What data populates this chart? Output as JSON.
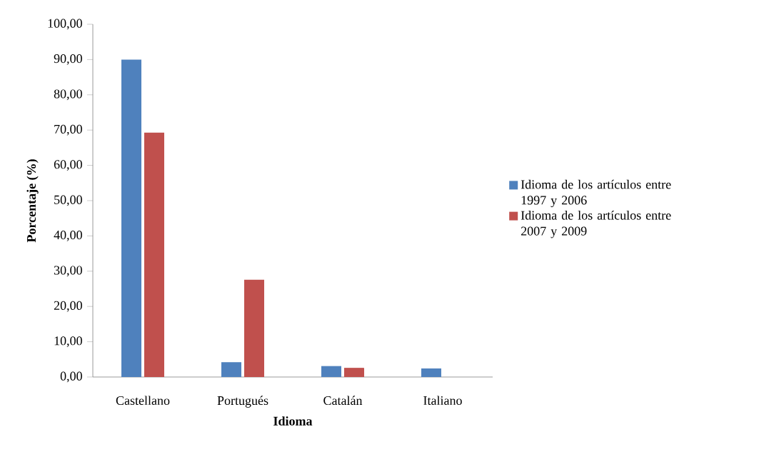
{
  "chart_data": {
    "type": "bar",
    "xlabel": "Idioma",
    "ylabel": "Porcentaje (%)",
    "categories": [
      "Castellano",
      "Portugués",
      "Catalán",
      "Italiano"
    ],
    "series": [
      {
        "name": "Idioma de los artículos entre 1997 y 2006",
        "color": "#4f81bd",
        "values": [
          90.0,
          4.2,
          3.1,
          2.4
        ]
      },
      {
        "name": "Idioma de los artículos entre 2007 y 2009",
        "color": "#c0504d",
        "values": [
          69.3,
          27.6,
          2.6,
          null
        ]
      }
    ],
    "ylim": [
      0,
      100
    ],
    "yticks": [
      {
        "value": 0,
        "label": "0,00"
      },
      {
        "value": 10,
        "label": "10,00"
      },
      {
        "value": 20,
        "label": "20,00"
      },
      {
        "value": 30,
        "label": "30,00"
      },
      {
        "value": 40,
        "label": "40,00"
      },
      {
        "value": 50,
        "label": "50,00"
      },
      {
        "value": 60,
        "label": "60,00"
      },
      {
        "value": 70,
        "label": "70,00"
      },
      {
        "value": 80,
        "label": "80,00"
      },
      {
        "value": 90,
        "label": "90,00"
      },
      {
        "value": 100,
        "label": "100,00"
      }
    ],
    "grid": false,
    "legend": "right"
  }
}
